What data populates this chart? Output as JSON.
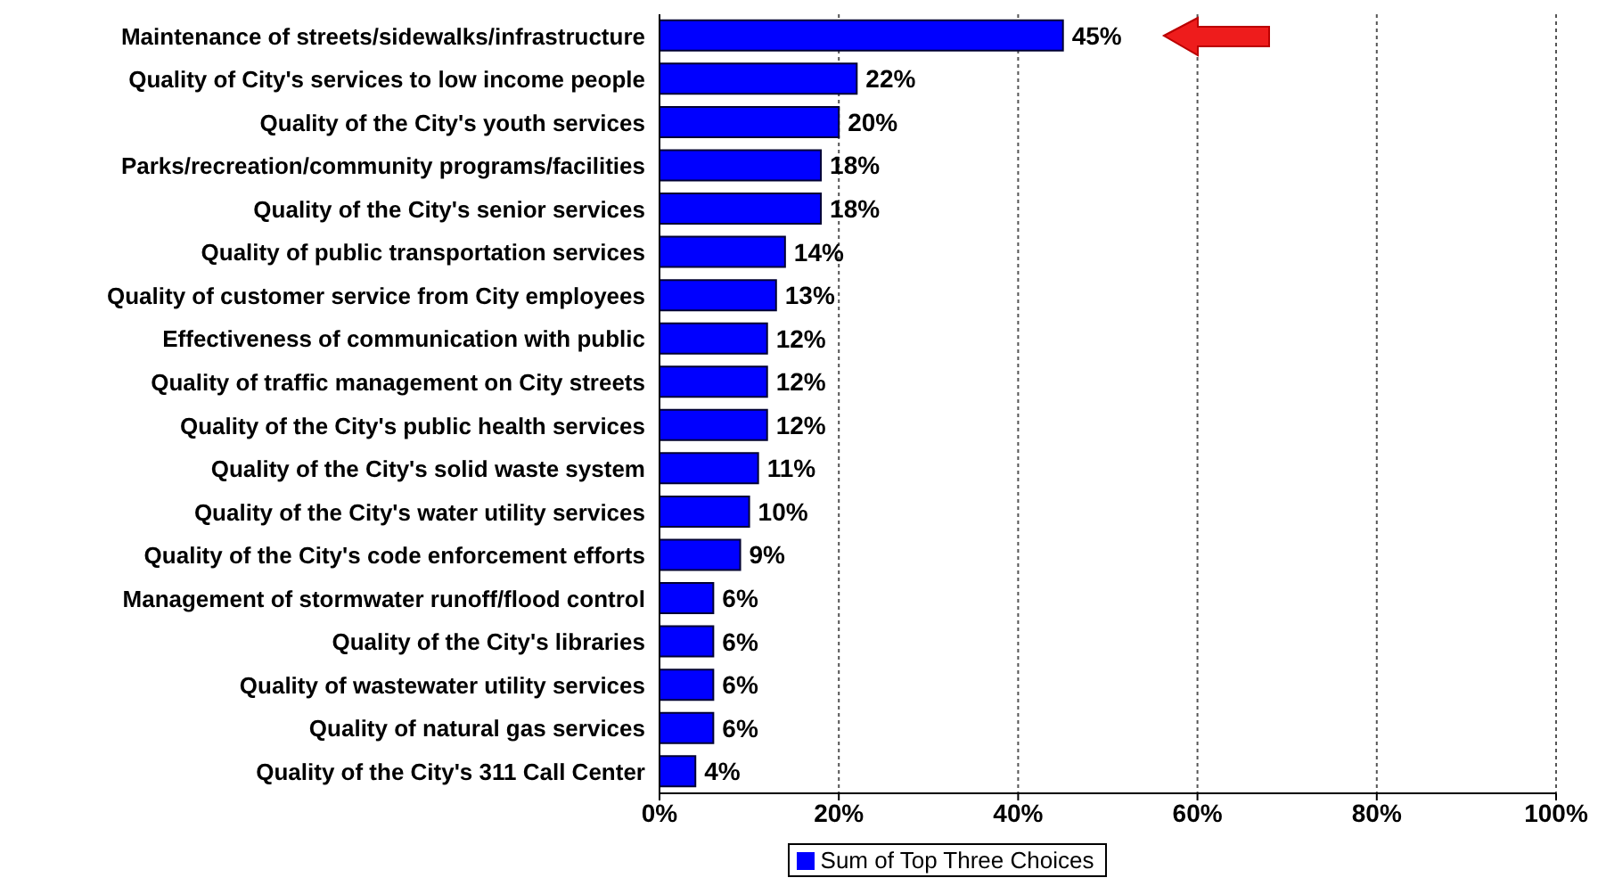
{
  "chart_data": {
    "type": "bar",
    "orientation": "horizontal",
    "categories": [
      "Maintenance of streets/sidewalks/infrastructure",
      "Quality of City's services to low income people",
      "Quality of the City's youth services",
      "Parks/recreation/community programs/facilities",
      "Quality of the City's senior services",
      "Quality of public transportation services",
      "Quality of customer service from City employees",
      "Effectiveness of communication with public",
      "Quality of traffic management on City streets",
      "Quality of the City's public health services",
      "Quality of the City's solid waste system",
      "Quality of the City's water utility services",
      "Quality of the City's code enforcement efforts",
      "Management of stormwater runoff/flood control",
      "Quality of the City's libraries",
      "Quality of wastewater utility services",
      "Quality of natural gas services",
      "Quality of the City's 311 Call Center"
    ],
    "series": [
      {
        "name": "Sum of Top Three Choices",
        "color": "#0000ff",
        "values": [
          45,
          22,
          20,
          18,
          18,
          14,
          13,
          12,
          12,
          12,
          11,
          10,
          9,
          6,
          6,
          6,
          6,
          4
        ],
        "value_labels": [
          "45%",
          "22%",
          "20%",
          "18%",
          "18%",
          "14%",
          "13%",
          "12%",
          "12%",
          "12%",
          "11%",
          "10%",
          "9%",
          "6%",
          "6%",
          "6%",
          "6%",
          "4%"
        ]
      }
    ],
    "xlim": [
      0,
      100
    ],
    "xticks": [
      {
        "value": 0,
        "label": "0%"
      },
      {
        "value": 20,
        "label": "20%"
      },
      {
        "value": 40,
        "label": "40%"
      },
      {
        "value": 60,
        "label": "60%"
      },
      {
        "value": 80,
        "label": "80%"
      },
      {
        "value": 100,
        "label": "100%"
      }
    ],
    "grid": "x",
    "legend": "bottom"
  }
}
